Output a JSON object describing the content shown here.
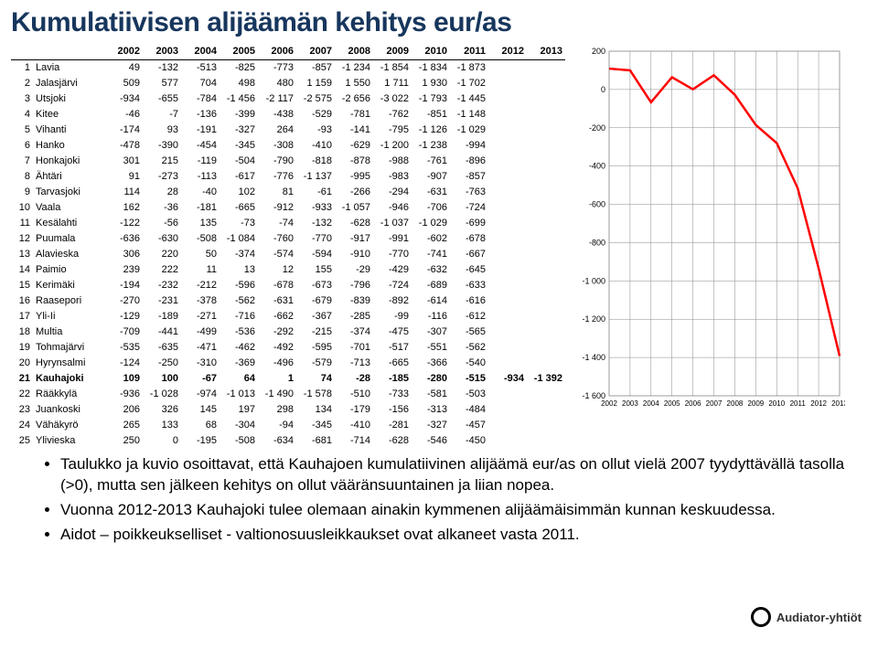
{
  "title": "Kumulatiivisen alijäämän kehitys eur/as",
  "years": [
    "2002",
    "2003",
    "2004",
    "2005",
    "2006",
    "2007",
    "2008",
    "2009",
    "2010",
    "2011",
    "2012",
    "2013"
  ],
  "rows": [
    {
      "n": 1,
      "name": "Lavia",
      "v": [
        49,
        -132,
        -513,
        -825,
        -773,
        -857,
        -1234,
        -1854,
        -1834,
        -1873,
        null,
        null
      ]
    },
    {
      "n": 2,
      "name": "Jalasjärvi",
      "v": [
        509,
        577,
        704,
        498,
        480,
        1159,
        1550,
        1711,
        1930,
        -1702,
        null,
        null
      ]
    },
    {
      "n": 3,
      "name": "Utsjoki",
      "v": [
        -934,
        -655,
        -784,
        -1456,
        -2117,
        -2575,
        -2656,
        -3022,
        -1793,
        -1445,
        null,
        null
      ]
    },
    {
      "n": 4,
      "name": "Kitee",
      "v": [
        -46,
        -7,
        -136,
        -399,
        -438,
        -529,
        -781,
        -762,
        -851,
        -1148,
        null,
        null
      ]
    },
    {
      "n": 5,
      "name": "Vihanti",
      "v": [
        -174,
        93,
        -191,
        -327,
        264,
        -93,
        -141,
        -795,
        -1126,
        -1029,
        null,
        null
      ]
    },
    {
      "n": 6,
      "name": "Hanko",
      "v": [
        -478,
        -390,
        -454,
        -345,
        -308,
        -410,
        -629,
        -1200,
        -1238,
        -994,
        null,
        null
      ]
    },
    {
      "n": 7,
      "name": "Honkajoki",
      "v": [
        301,
        215,
        -119,
        -504,
        -790,
        -818,
        -878,
        -988,
        -761,
        -896,
        null,
        null
      ]
    },
    {
      "n": 8,
      "name": "Ähtäri",
      "v": [
        91,
        -273,
        -113,
        -617,
        -776,
        -1137,
        -995,
        -983,
        -907,
        -857,
        null,
        null
      ]
    },
    {
      "n": 9,
      "name": "Tarvasjoki",
      "v": [
        114,
        28,
        -40,
        102,
        81,
        -61,
        -266,
        -294,
        -631,
        -763,
        null,
        null
      ]
    },
    {
      "n": 10,
      "name": "Vaala",
      "v": [
        162,
        -36,
        -181,
        -665,
        -912,
        -933,
        -1057,
        -946,
        -706,
        -724,
        null,
        null
      ]
    },
    {
      "n": 11,
      "name": "Kesälahti",
      "v": [
        -122,
        -56,
        135,
        -73,
        -74,
        -132,
        -628,
        -1037,
        -1029,
        -699,
        null,
        null
      ]
    },
    {
      "n": 12,
      "name": "Puumala",
      "v": [
        -636,
        -630,
        -508,
        -1084,
        -760,
        -770,
        -917,
        -991,
        -602,
        -678,
        null,
        null
      ]
    },
    {
      "n": 13,
      "name": "Alavieska",
      "v": [
        306,
        220,
        50,
        -374,
        -574,
        -594,
        -910,
        -770,
        -741,
        -667,
        null,
        null
      ]
    },
    {
      "n": 14,
      "name": "Paimio",
      "v": [
        239,
        222,
        11,
        13,
        12,
        155,
        -29,
        -429,
        -632,
        -645,
        null,
        null
      ]
    },
    {
      "n": 15,
      "name": "Kerimäki",
      "v": [
        -194,
        -232,
        -212,
        -596,
        -678,
        -673,
        -796,
        -724,
        -689,
        -633,
        null,
        null
      ]
    },
    {
      "n": 16,
      "name": "Raasepori",
      "v": [
        -270,
        -231,
        -378,
        -562,
        -631,
        -679,
        -839,
        -892,
        -614,
        -616,
        null,
        null
      ]
    },
    {
      "n": 17,
      "name": "Yli-Ii",
      "v": [
        -129,
        -189,
        -271,
        -716,
        -662,
        -367,
        -285,
        -99,
        -116,
        -612,
        null,
        null
      ]
    },
    {
      "n": 18,
      "name": "Multia",
      "v": [
        -709,
        -441,
        -499,
        -536,
        -292,
        -215,
        -374,
        -475,
        -307,
        -565,
        null,
        null
      ]
    },
    {
      "n": 19,
      "name": "Tohmajärvi",
      "v": [
        -535,
        -635,
        -471,
        -462,
        -492,
        -595,
        -701,
        -517,
        -551,
        -562,
        null,
        null
      ]
    },
    {
      "n": 20,
      "name": "Hyrynsalmi",
      "v": [
        -124,
        -250,
        -310,
        -369,
        -496,
        -579,
        -713,
        -665,
        -366,
        -540,
        null,
        null
      ]
    },
    {
      "n": 21,
      "name": "Kauhajoki",
      "v": [
        109,
        100,
        -67,
        64,
        1,
        74,
        -28,
        -185,
        -280,
        -515,
        -934,
        -1392
      ],
      "hl": true
    },
    {
      "n": 22,
      "name": "Rääkkylä",
      "v": [
        -936,
        -1028,
        -974,
        -1013,
        -1490,
        -1578,
        -510,
        -733,
        -581,
        -503,
        null,
        null
      ]
    },
    {
      "n": 23,
      "name": "Juankoski",
      "v": [
        206,
        326,
        145,
        197,
        298,
        134,
        -179,
        -156,
        -313,
        -484,
        null,
        null
      ]
    },
    {
      "n": 24,
      "name": "Vähäkyrö",
      "v": [
        265,
        133,
        68,
        -304,
        -94,
        -345,
        -410,
        -281,
        -327,
        -457,
        null,
        null
      ]
    },
    {
      "n": 25,
      "name": "Ylivieska",
      "v": [
        250,
        0,
        -195,
        -508,
        -634,
        -681,
        -714,
        -628,
        -546,
        -450,
        null,
        null
      ]
    }
  ],
  "chart": {
    "series": [
      109,
      100,
      -67,
      64,
      1,
      74,
      -28,
      -185,
      -280,
      -515,
      -934,
      -1392
    ],
    "ymin": -1600,
    "ymax": 200,
    "ystep": 200,
    "bg": "#ffffff",
    "line_color": "#ff0000",
    "line_width": 2.5,
    "axis_color": "#8a8a8a",
    "tick_fontsize": 9
  },
  "bullets": [
    "Taulukko ja kuvio osoittavat, että Kauhajoen kumulatiivinen alijäämä eur/as on ollut vielä 2007 tyydyttävällä tasolla (>0), mutta sen jälkeen kehitys on ollut vääränsuuntainen ja liian nopea.",
    "Vuonna 2012-2013 Kauhajoki tulee olemaan ainakin kymmenen alijäämäisimmän kunnan keskuudessa.",
    "Aidot – poikkeukselliset - valtionosuusleikkaukset ovat alkaneet vasta 2011."
  ],
  "logo_text": "Audiator-yhtiöt"
}
